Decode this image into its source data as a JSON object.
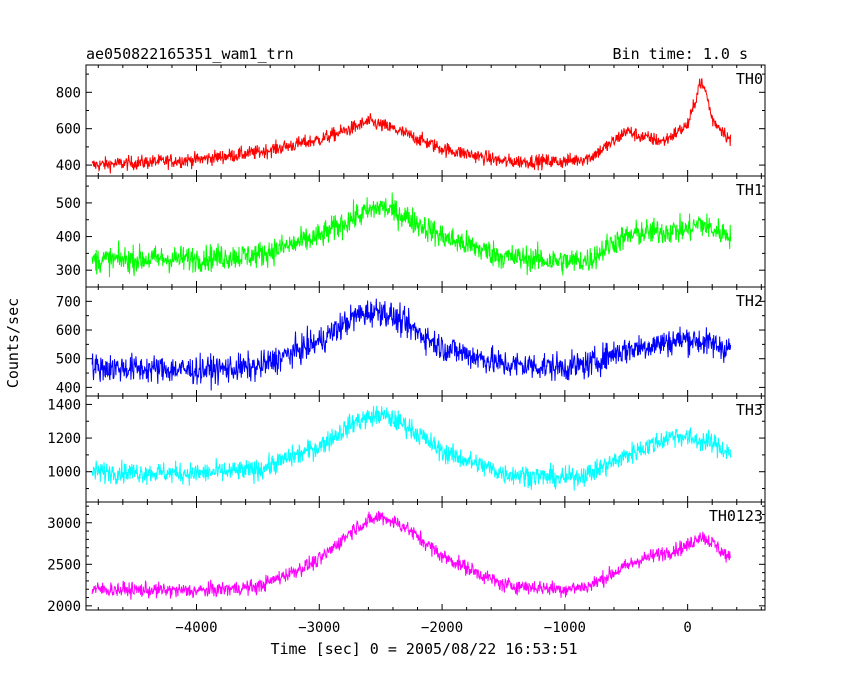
{
  "header": {
    "left_title": "ae050822165351_wam1_trn",
    "right_title": "Bin time: 1.0 s"
  },
  "chart_data": {
    "type": "line",
    "xlabel": "Time [sec] 0 = 2005/08/22 16:53:51",
    "ylabel": "Counts/sec",
    "xlim": [
      -4900,
      630
    ],
    "x_ticks": [
      -4000,
      -3000,
      -2000,
      -1000,
      0
    ],
    "x_tick_labels": [
      "−4000",
      "−3000",
      "−2000",
      "−1000",
      "0"
    ],
    "x_minor_step": 200,
    "panels": [
      {
        "name": "TH0",
        "color": "#ff0000",
        "ylim": [
          340,
          950
        ],
        "y_ticks": [
          400,
          600,
          800
        ],
        "y_minor_step": 100,
        "noise": 28,
        "x": [
          -4850,
          -4000,
          -3500,
          -3000,
          -2700,
          -2600,
          -2400,
          -2000,
          -1500,
          -1000,
          -800,
          -600,
          -500,
          -400,
          -200,
          0,
          50,
          100,
          150,
          200,
          300,
          350
        ],
        "y": [
          400,
          430,
          470,
          540,
          610,
          640,
          600,
          490,
          420,
          420,
          440,
          530,
          590,
          560,
          530,
          620,
          720,
          860,
          800,
          650,
          580,
          530
        ]
      },
      {
        "name": "TH1",
        "color": "#00ff00",
        "ylim": [
          250,
          580
        ],
        "y_ticks": [
          300,
          400,
          500
        ],
        "y_minor_step": 50,
        "noise": 28,
        "x": [
          -4850,
          -4000,
          -3500,
          -3000,
          -2700,
          -2500,
          -2300,
          -2000,
          -1500,
          -1000,
          -800,
          -600,
          -400,
          0,
          100,
          200,
          350
        ],
        "y": [
          330,
          335,
          345,
          400,
          460,
          490,
          460,
          400,
          340,
          325,
          330,
          385,
          410,
          420,
          440,
          420,
          405
        ]
      },
      {
        "name": "TH2",
        "color": "#0000ff",
        "ylim": [
          370,
          750
        ],
        "y_ticks": [
          400,
          500,
          600,
          700
        ],
        "y_minor_step": 50,
        "noise": 35,
        "x": [
          -4850,
          -4000,
          -3500,
          -3000,
          -2700,
          -2500,
          -2300,
          -2000,
          -1500,
          -1000,
          -800,
          -600,
          -400,
          0,
          200,
          350
        ],
        "y": [
          470,
          460,
          470,
          560,
          650,
          670,
          620,
          540,
          480,
          470,
          480,
          520,
          540,
          570,
          550,
          535
        ]
      },
      {
        "name": "TH3",
        "color": "#00ffff",
        "ylim": [
          820,
          1450
        ],
        "y_ticks": [
          1000,
          1200,
          1400
        ],
        "y_minor_step": 100,
        "noise": 45,
        "x": [
          -4850,
          -4000,
          -3500,
          -3000,
          -2700,
          -2500,
          -2300,
          -2000,
          -1500,
          -1000,
          -800,
          -600,
          -400,
          -100,
          0,
          200,
          350
        ],
        "y": [
          1000,
          990,
          1010,
          1150,
          1300,
          1340,
          1280,
          1120,
          990,
          960,
          990,
          1060,
          1130,
          1220,
          1200,
          1170,
          1110
        ]
      },
      {
        "name": "TH0123",
        "color": "#ff00ff",
        "ylim": [
          1950,
          3250
        ],
        "y_ticks": [
          2000,
          2500,
          3000
        ],
        "y_minor_step": 100,
        "noise": 65,
        "x": [
          -4850,
          -4000,
          -3500,
          -3000,
          -2700,
          -2500,
          -2300,
          -2000,
          -1500,
          -1000,
          -800,
          -600,
          -400,
          0,
          100,
          200,
          350
        ],
        "y": [
          2200,
          2180,
          2230,
          2550,
          2950,
          3080,
          2950,
          2600,
          2250,
          2200,
          2240,
          2400,
          2550,
          2720,
          2850,
          2760,
          2560
        ]
      }
    ]
  }
}
